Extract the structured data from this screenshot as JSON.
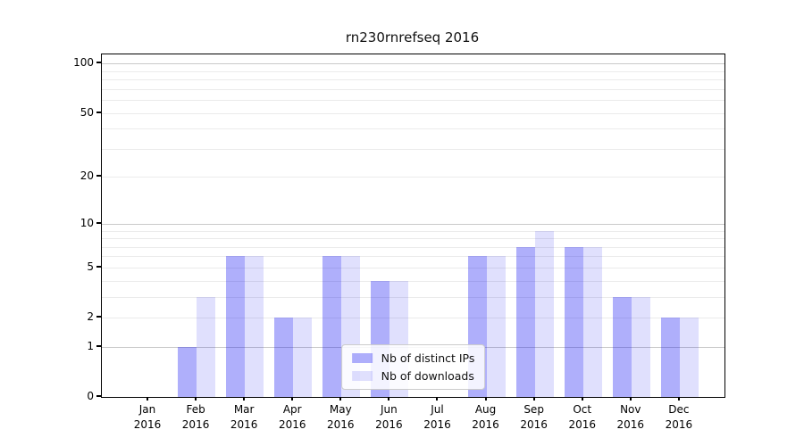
{
  "chart_data": {
    "type": "bar",
    "title": "rn230rnrefseq 2016",
    "categories": [
      "Jan",
      "Feb",
      "Mar",
      "Apr",
      "May",
      "Jun",
      "Jul",
      "Aug",
      "Sep",
      "Oct",
      "Nov",
      "Dec"
    ],
    "x_tick_labels": [
      [
        "Jan",
        "2016"
      ],
      [
        "Feb",
        "2016"
      ],
      [
        "Mar",
        "2016"
      ],
      [
        "Apr",
        "2016"
      ],
      [
        "May",
        "2016"
      ],
      [
        "Jun",
        "2016"
      ],
      [
        "Jul",
        "2016"
      ],
      [
        "Aug",
        "2016"
      ],
      [
        "Sep",
        "2016"
      ],
      [
        "Oct",
        "2016"
      ],
      [
        "Nov",
        "2016"
      ],
      [
        "Dec",
        "2016"
      ]
    ],
    "series": [
      {
        "name": "Nb of distinct IPs",
        "color": "rgba(13,13,242,0.33)",
        "values": [
          0,
          1,
          6,
          2,
          6,
          4,
          0,
          6,
          7,
          7,
          3,
          2
        ]
      },
      {
        "name": "Nb of downloads",
        "color": "rgba(13,13,242,0.13)",
        "values": [
          0,
          3,
          6,
          2,
          6,
          4,
          0,
          6,
          9,
          7,
          3,
          2
        ]
      }
    ],
    "y_axis": {
      "scale": "log10(1+x)",
      "tick_values": [
        100,
        50,
        20,
        10,
        5,
        2,
        1,
        0
      ],
      "tick_labels": [
        "100",
        "50",
        "20",
        "10",
        "5",
        "2",
        "1",
        "0"
      ],
      "minor_gridlines": [
        2,
        3,
        4,
        5,
        6,
        7,
        8,
        9,
        20,
        30,
        40,
        50,
        60,
        70,
        80,
        90
      ],
      "major_gridlines": [
        1,
        10,
        100
      ],
      "ylim": [
        0,
        115
      ]
    },
    "legend": {
      "position": "lower center",
      "entries": [
        "Nb of distinct IPs",
        "Nb of downloads"
      ]
    },
    "grid": true
  },
  "colors": {
    "bar_distinct_ips": "rgba(13,13,242,0.33)",
    "bar_downloads": "rgba(13,13,242,0.13)",
    "gridline_minor": "#ebebeb",
    "gridline_major": "#c9c9c9",
    "spine": "#000000",
    "legend_border": "#cccccc",
    "background": "#ffffff"
  }
}
